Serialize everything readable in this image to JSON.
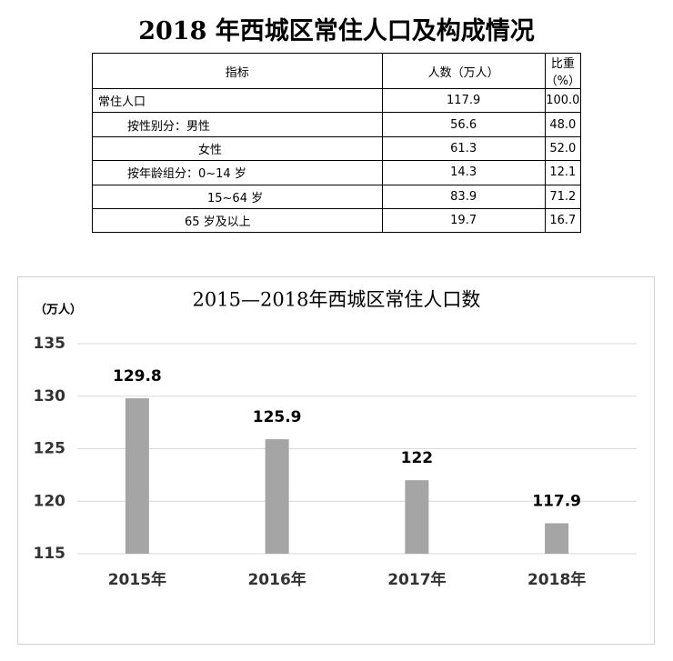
{
  "title": "2018 年西城区常住人口及构成情况",
  "table": {
    "header": [
      "指标",
      "人数（万人）",
      "比重（%）"
    ],
    "rows": [
      [
        "常住人口",
        "117.9",
        "100.0"
      ],
      [
        "按性别分：男性",
        "56.6",
        "48.0"
      ],
      [
        "女性",
        "61.3",
        "52.0"
      ],
      [
        "按年龄组分：0~14 岁",
        "14.3",
        "12.1"
      ],
      [
        "15~64 岁",
        "83.9",
        "71.2"
      ],
      [
        "65 岁及以上",
        "19.7",
        "16.7"
      ]
    ]
  },
  "chart_data": {
    "type": "bar",
    "title": "2015—2018年西城区常住人口数",
    "y_label": "（万人）",
    "categories": [
      "2015年",
      "2016年",
      "2017年",
      "2018年"
    ],
    "values": [
      129.8,
      125.9,
      122,
      117.9
    ],
    "color": "#a5a5a5",
    "ylim": [
      115,
      135
    ],
    "yticks": [
      115,
      120,
      125,
      130,
      135
    ],
    "grid": true
  }
}
